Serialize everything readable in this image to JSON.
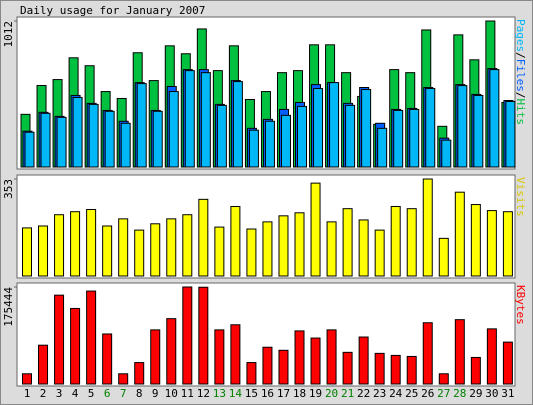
{
  "title": "Daily usage for January 2007",
  "separator": "/",
  "categories": [
    "1",
    "2",
    "3",
    "4",
    "5",
    "6",
    "7",
    "8",
    "9",
    "10",
    "11",
    "12",
    "13",
    "14",
    "15",
    "16",
    "17",
    "18",
    "19",
    "20",
    "21",
    "22",
    "23",
    "24",
    "25",
    "26",
    "27",
    "28",
    "29",
    "30",
    "31"
  ],
  "category_colors": [
    "#000000",
    "#000000",
    "#000000",
    "#000000",
    "#000000",
    "#008000",
    "#008000",
    "#000000",
    "#000000",
    "#000000",
    "#000000",
    "#000000",
    "#008000",
    "#008000",
    "#000000",
    "#000000",
    "#000000",
    "#000000",
    "#000000",
    "#008000",
    "#008000",
    "#000000",
    "#000000",
    "#000000",
    "#000000",
    "#000000",
    "#008000",
    "#008000",
    "#000000",
    "#000000",
    "#000000"
  ],
  "chart_data": [
    {
      "type": "bar",
      "ylim": [
        0,
        1012
      ],
      "yticks": [
        1012
      ],
      "label_order": [
        2,
        1,
        0
      ],
      "series": [
        {
          "name": "Hits",
          "color": "#00c040",
          "values": [
            365,
            565,
            606,
            757,
            702,
            523,
            475,
            792,
            599,
            840,
            785,
            957,
            668,
            840,
            468,
            523,
            654,
            668,
            847,
            847,
            654,
            489,
            296,
            675,
            654,
            950,
            282,
            916,
            743,
            1012,
            447
          ]
        },
        {
          "name": "Files",
          "color": "#0060ff",
          "values": [
            248,
            379,
            351,
            496,
            441,
            392,
            317,
            585,
            392,
            558,
            675,
            675,
            434,
            599,
            268,
            330,
            399,
            447,
            571,
            585,
            441,
            551,
            303,
            399,
            406,
            551,
            200,
            571,
            503,
            682,
            461
          ]
        },
        {
          "name": "Pages",
          "color": "#00b8f8",
          "values": [
            241,
            372,
            344,
            482,
            434,
            386,
            303,
            578,
            386,
            523,
            668,
            654,
            427,
            592,
            255,
            317,
            358,
            420,
            544,
            585,
            427,
            537,
            268,
            392,
            399,
            544,
            186,
            564,
            496,
            675,
            454
          ]
        }
      ]
    },
    {
      "type": "bar",
      "ylim": [
        0,
        353
      ],
      "yticks": [
        353
      ],
      "label_order": [
        0
      ],
      "series": [
        {
          "name": "Visits",
          "color": "#ffff00",
          "label_color": "#d8c800",
          "values": [
            175,
            182,
            223,
            234,
            242,
            182,
            208,
            167,
            190,
            208,
            223,
            279,
            178,
            253,
            171,
            197,
            219,
            230,
            338,
            197,
            245,
            204,
            167,
            253,
            245,
            353,
            137,
            305,
            260,
            238,
            234
          ]
        }
      ]
    },
    {
      "type": "bar",
      "ylim": [
        0,
        175444
      ],
      "yticks": [
        175444
      ],
      "label_order": [
        0
      ],
      "series": [
        {
          "name": "KBytes",
          "color": "#ff0000",
          "values": [
            18470,
            70186,
            160689,
            136678,
            168077,
            90503,
            18470,
            38787,
            97891,
            118208,
            175444,
            175000,
            97891,
            107126,
            38787,
            66492,
            60951,
            96044,
            83115,
            97891,
            57257,
            84962,
            55410,
            51716,
            49869,
            110820,
            18470,
            116361,
            48022,
            99738,
            75727
          ]
        }
      ]
    }
  ]
}
